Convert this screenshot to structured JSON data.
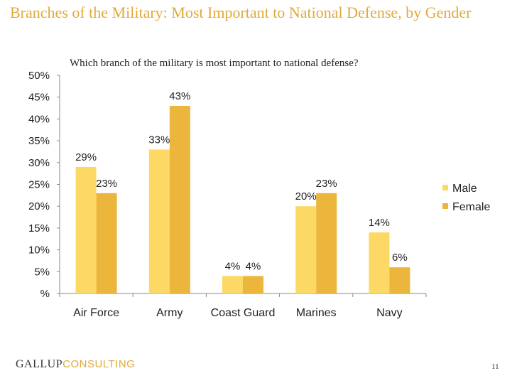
{
  "page": {
    "title": "Branches of the Military: Most Important to National Defense, by Gender",
    "subtitle": "Which branch of the military is most important to national defense?",
    "logo_primary": "GALLUP",
    "logo_secondary": "CONSULTING",
    "page_number": "11"
  },
  "colors": {
    "male": "#fcd865",
    "female": "#ecb53c",
    "accent": "#e2a93a"
  },
  "chart_data": {
    "type": "bar",
    "categories": [
      "Air Force",
      "Army",
      "Coast Guard",
      "Marines",
      "Navy"
    ],
    "series": [
      {
        "name": "Male",
        "values": [
          29,
          33,
          4,
          20,
          14
        ],
        "labels": [
          "29%",
          "33%",
          "4%",
          "20%",
          "14%"
        ]
      },
      {
        "name": "Female",
        "values": [
          23,
          43,
          4,
          23,
          6
        ],
        "labels": [
          "23%",
          "43%",
          "4%",
          "23%",
          "6%"
        ]
      }
    ],
    "ylim": [
      0,
      50
    ],
    "yticks": [
      "%",
      "5%",
      "10%",
      "15%",
      "20%",
      "25%",
      "30%",
      "35%",
      "40%",
      "45%",
      "50%"
    ],
    "xlabel": "",
    "ylabel": "",
    "grid": false,
    "legend": "right"
  }
}
